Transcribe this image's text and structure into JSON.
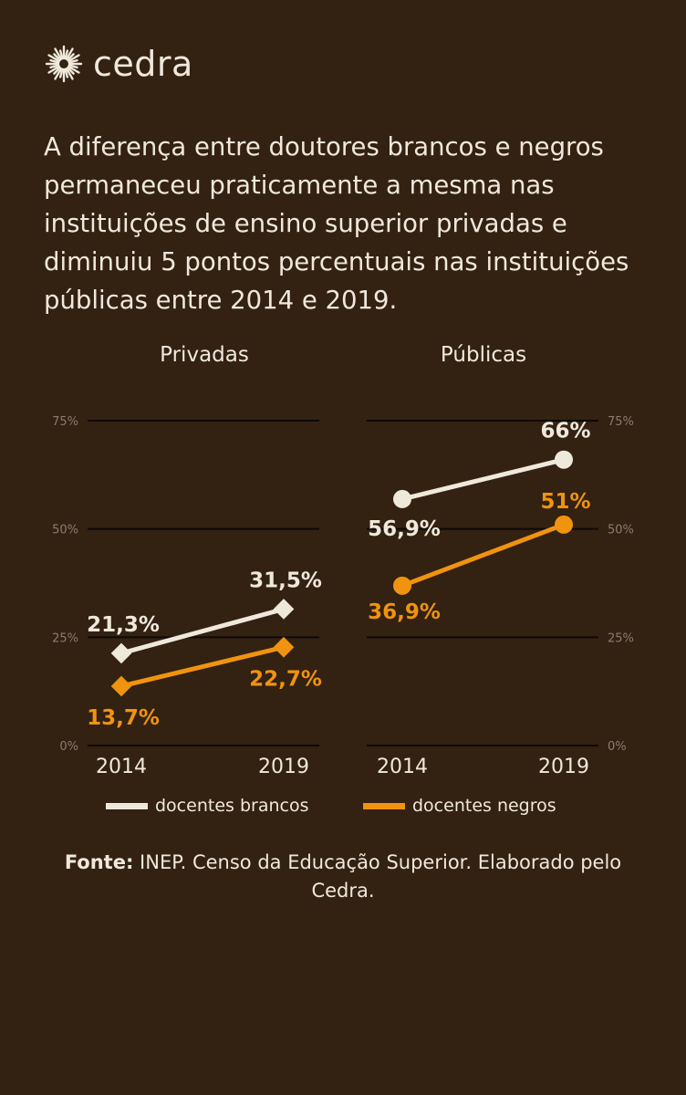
{
  "brand": {
    "name": "cedra"
  },
  "headline": "A diferença entre doutores brancos e negros permaneceu praticamente a mesma nas instituições de ensino superior privadas e diminuiu 5 pontos percentuais nas instituições públicas entre 2014 e 2019.",
  "colors": {
    "background": "#332112",
    "white_series": "#efe9dc",
    "black_series": "#f0930f",
    "grid": "#0d0906",
    "tick": "#8a7d6d"
  },
  "chart_data": [
    {
      "type": "line",
      "title": "Privadas",
      "x": [
        "2014",
        "2019"
      ],
      "ylim": [
        0,
        75
      ],
      "yticks": [
        "0%",
        "25%",
        "50%",
        "75%"
      ],
      "ytick_values": [
        0,
        25,
        50,
        75
      ],
      "marker": "diamond",
      "series": [
        {
          "name": "docentes brancos",
          "values": [
            21.3,
            31.5
          ],
          "labels": [
            "21,3%",
            "31,5%"
          ]
        },
        {
          "name": "docentes negros",
          "values": [
            13.7,
            22.7
          ],
          "labels": [
            "13,7%",
            "22,7%"
          ]
        }
      ]
    },
    {
      "type": "line",
      "title": "Públicas",
      "x": [
        "2014",
        "2019"
      ],
      "ylim": [
        0,
        75
      ],
      "yticks": [
        "0%",
        "25%",
        "50%",
        "75%"
      ],
      "ytick_values": [
        0,
        25,
        50,
        75
      ],
      "marker": "circle",
      "series": [
        {
          "name": "docentes brancos",
          "values": [
            56.9,
            66
          ],
          "labels": [
            "56,9%",
            "66%"
          ]
        },
        {
          "name": "docentes negros",
          "values": [
            36.9,
            51
          ],
          "labels": [
            "36,9%",
            "51%"
          ]
        }
      ]
    }
  ],
  "legend": {
    "white_label": "docentes brancos",
    "black_label": "docentes negros"
  },
  "source": {
    "label": "Fonte:",
    "text": " INEP. Censo da Educação Superior. Elaborado pelo Cedra."
  }
}
